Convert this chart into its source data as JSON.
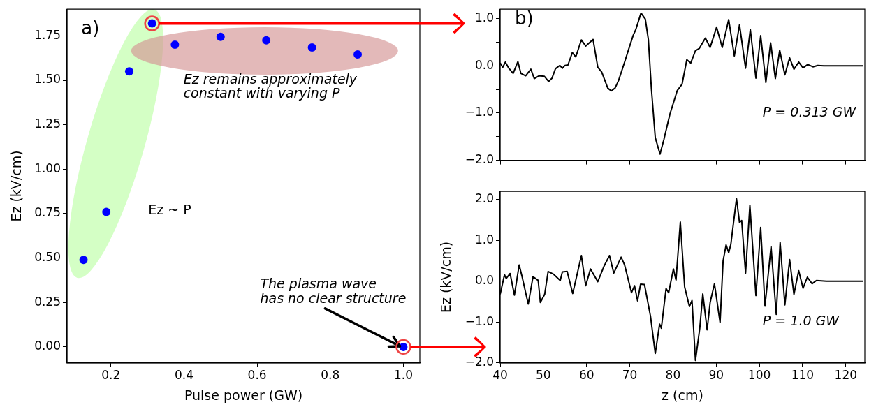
{
  "chart_data": [
    {
      "type": "scatter",
      "xlabel": "Pulse power (GW)",
      "ylabel": "Ez (kV/cm)",
      "xlim": [
        0.08,
        1.045
      ],
      "ylim": [
        -0.09,
        1.9
      ],
      "xticks": [
        {
          "value": 0.2,
          "label": "0.2"
        },
        {
          "value": 0.4,
          "label": "0.4"
        },
        {
          "value": 0.6,
          "label": "0.6"
        },
        {
          "value": 0.8,
          "label": "0.8"
        },
        {
          "value": 1.0,
          "label": "1.0"
        }
      ],
      "yticks": [
        {
          "value": 0,
          "label": "0.00"
        },
        {
          "value": 0.25,
          "label": "0.25"
        },
        {
          "value": 0.5,
          "label": "0.50"
        },
        {
          "value": 0.75,
          "label": "0.75"
        },
        {
          "value": 1.0,
          "label": "1.00"
        },
        {
          "value": 1.25,
          "label": "1.25"
        },
        {
          "value": 1.5,
          "label": "1.50"
        },
        {
          "value": 1.75,
          "label": "1.75"
        }
      ],
      "marker": "circle",
      "color": "#0000ff",
      "x": [
        0.125,
        0.1875,
        0.25,
        0.3125,
        0.375,
        0.5,
        0.625,
        0.75,
        0.875,
        1.0
      ],
      "values": [
        0.49,
        0.76,
        1.55,
        1.82,
        1.7,
        1.745,
        1.725,
        1.685,
        1.645,
        0.0
      ],
      "annotations": [
        "a)",
        "Ez remains approximately\nconstant with varying P",
        "Ez ~ P",
        {
          "text": "The plasma wave\nhas no clear structure",
          "x": 1.0,
          "y": 0.0
        }
      ]
    },
    {
      "type": "line",
      "xlim": [
        40,
        124.4
      ],
      "ylim": [
        -2.0,
        1.2
      ],
      "xticks": [
        40,
        50,
        60,
        70,
        80,
        90,
        100,
        110,
        120
      ],
      "yticks": [
        {
          "value": -2,
          "label": "−2.0"
        },
        {
          "value": -1.5,
          "label": null
        },
        {
          "value": -1,
          "label": "−1.0"
        },
        {
          "value": -0.5,
          "label": null
        },
        {
          "value": 0,
          "label": "0.0"
        },
        {
          "value": 0.5,
          "label": null
        },
        {
          "value": 1,
          "label": "1.0"
        }
      ],
      "tick_labels": "y",
      "color": "#000000",
      "x": [
        40.0,
        40.6,
        41.2,
        42.0,
        43.0,
        44.1,
        44.8,
        45.9,
        47.1,
        47.9,
        49.0,
        50.2,
        51.2,
        52.0,
        52.8,
        53.8,
        54.4,
        55.0,
        55.7,
        56.7,
        57.5,
        58.8,
        59.8,
        61.5,
        62.6,
        63.5,
        64.9,
        65.7,
        66.6,
        67.4,
        68.8,
        69.6,
        70.8,
        71.4,
        72.6,
        73.6,
        74.3,
        75.0,
        75.9,
        77.0,
        77.9,
        79.3,
        81.0,
        82.1,
        83.2,
        84.1,
        85.2,
        86.1,
        87.5,
        88.6,
        90.1,
        91.4,
        92.9,
        94.2,
        95.4,
        96.8,
        97.9,
        99.2,
        100.3,
        101.5,
        102.6,
        103.7,
        104.7,
        105.9,
        107.0,
        108.0,
        109.1,
        110.1,
        111.2,
        112.4,
        113.5,
        114.9,
        124.0
      ],
      "values": [
        0.06,
        -0.03,
        0.08,
        -0.05,
        -0.16,
        0.09,
        -0.16,
        -0.21,
        -0.07,
        -0.27,
        -0.21,
        -0.22,
        -0.33,
        -0.26,
        -0.06,
        0.01,
        -0.05,
        0.01,
        0.02,
        0.28,
        0.19,
        0.55,
        0.42,
        0.56,
        -0.03,
        -0.13,
        -0.47,
        -0.53,
        -0.47,
        -0.31,
        0.08,
        0.31,
        0.65,
        0.77,
        1.12,
        0.99,
        0.56,
        -0.48,
        -1.52,
        -1.87,
        -1.56,
        -1.02,
        -0.52,
        -0.39,
        0.13,
        0.06,
        0.32,
        0.37,
        0.59,
        0.39,
        0.82,
        0.39,
        0.98,
        0.21,
        0.87,
        -0.05,
        0.77,
        -0.26,
        0.64,
        -0.35,
        0.49,
        -0.27,
        0.33,
        -0.19,
        0.17,
        -0.07,
        0.08,
        -0.04,
        0.03,
        -0.02,
        0.01,
        0.0,
        0.0
      ],
      "annotations": [
        "b)",
        "P = 0.313 GW"
      ]
    },
    {
      "type": "line",
      "xlabel": "z (cm)",
      "ylabel": "Ez (kV/cm)",
      "xlim": [
        40,
        124.4
      ],
      "ylim": [
        -2.0,
        2.2
      ],
      "xticks": [
        40,
        50,
        60,
        70,
        80,
        90,
        100,
        110,
        120
      ],
      "yticks": [
        {
          "value": -2,
          "label": "−2.0"
        },
        {
          "value": -1,
          "label": "−1.0"
        },
        {
          "value": 0,
          "label": "0.0"
        },
        {
          "value": 1,
          "label": "1.0"
        },
        {
          "value": 2,
          "label": "2.0"
        }
      ],
      "color": "#000000",
      "x": [
        40.0,
        41.0,
        41.4,
        42.3,
        43.3,
        44.4,
        45.1,
        46.5,
        47.6,
        48.8,
        49.3,
        50.3,
        51.1,
        52.4,
        53.9,
        54.4,
        55.5,
        56.8,
        58.8,
        59.8,
        60.9,
        62.6,
        64.0,
        65.3,
        66.3,
        68.0,
        68.8,
        70.4,
        71.1,
        71.8,
        72.5,
        73.4,
        74.8,
        75.9,
        76.9,
        77.3,
        78.4,
        79.0,
        80.1,
        80.7,
        81.7,
        82.7,
        83.8,
        84.4,
        85.2,
        86.2,
        86.9,
        87.9,
        88.6,
        89.6,
        90.9,
        91.6,
        92.3,
        92.9,
        93.4,
        94.7,
        95.4,
        95.9,
        96.8,
        97.8,
        99.2,
        100.3,
        101.3,
        102.7,
        103.9,
        104.8,
        105.9,
        107.0,
        108.0,
        109.1,
        110.1,
        111.1,
        112.2,
        113.2,
        115.5,
        124.0
      ],
      "values": [
        -0.32,
        0.16,
        0.07,
        0.19,
        -0.34,
        0.4,
        0.1,
        -0.56,
        0.11,
        0.02,
        -0.52,
        -0.32,
        0.24,
        0.17,
        0.02,
        0.23,
        0.24,
        -0.3,
        0.63,
        -0.11,
        0.3,
        -0.01,
        0.36,
        0.63,
        0.2,
        0.59,
        0.4,
        -0.28,
        -0.11,
        -0.48,
        -0.07,
        -0.08,
        -0.86,
        -1.77,
        -1.05,
        -1.15,
        -0.18,
        -0.28,
        0.3,
        0.03,
        1.45,
        -0.14,
        -0.62,
        -0.47,
        -1.94,
        -1.15,
        -0.31,
        -1.19,
        -0.52,
        -0.06,
        -1.01,
        0.5,
        0.89,
        0.7,
        0.91,
        2.02,
        1.44,
        1.49,
        0.2,
        1.86,
        -0.35,
        1.32,
        -0.61,
        0.85,
        -0.81,
        0.95,
        -0.58,
        0.53,
        -0.32,
        0.26,
        -0.17,
        0.1,
        -0.06,
        0.02,
        0.0,
        0.0
      ],
      "annotations": [
        "P = 1.0 GW"
      ]
    }
  ]
}
